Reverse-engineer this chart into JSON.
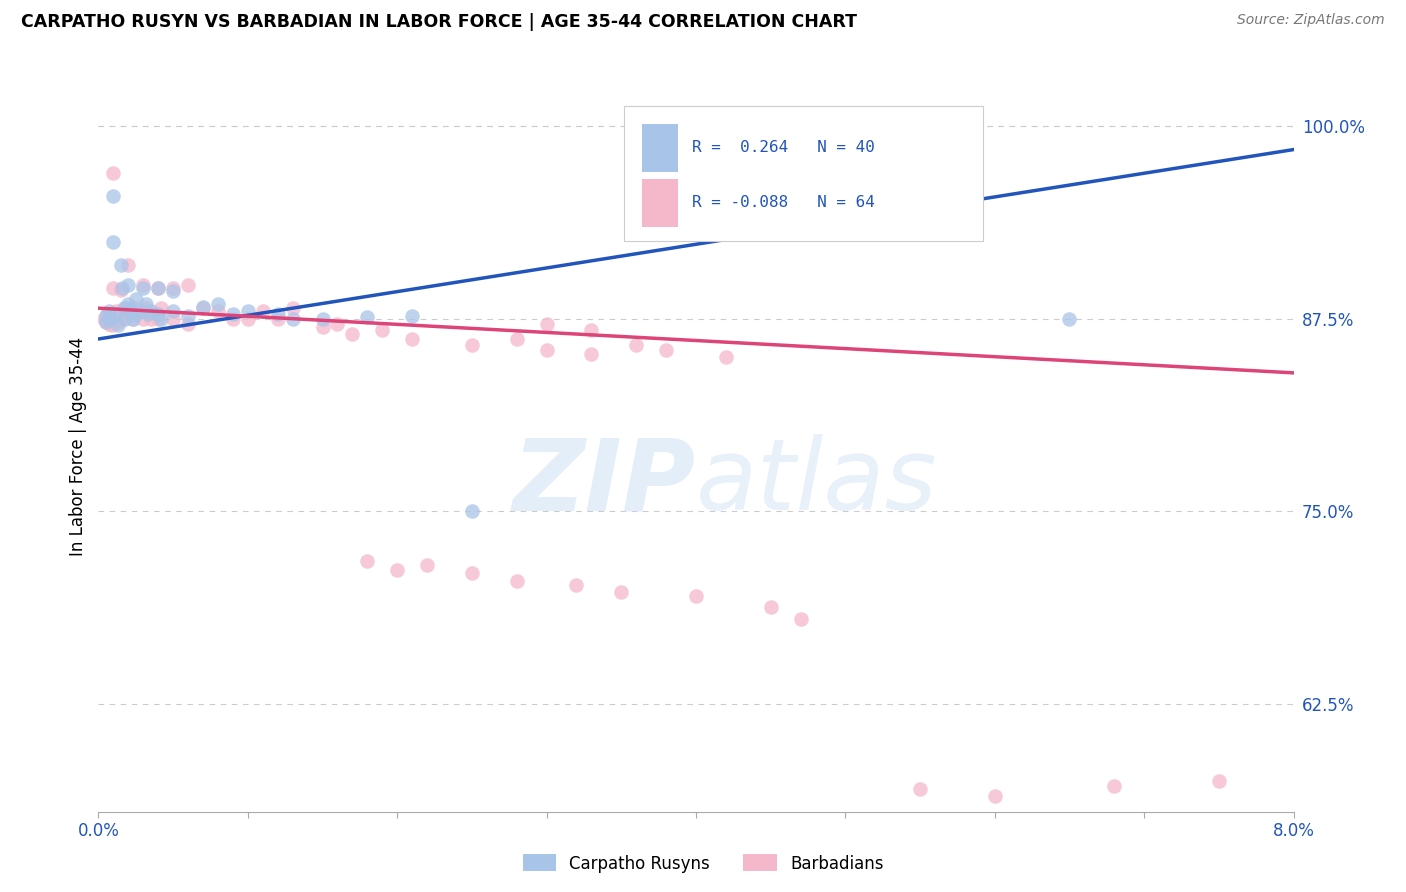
{
  "title": "CARPATHO RUSYN VS BARBADIAN IN LABOR FORCE | AGE 35-44 CORRELATION CHART",
  "source": "Source: ZipAtlas.com",
  "ylabel": "In Labor Force | Age 35-44",
  "yticks": [
    "62.5%",
    "75.0%",
    "87.5%",
    "100.0%"
  ],
  "ytick_vals": [
    0.625,
    0.75,
    0.875,
    1.0
  ],
  "xlim": [
    0.0,
    0.08
  ],
  "ylim": [
    0.555,
    1.03
  ],
  "carpatho_color": "#a8c4e8",
  "barbadian_color": "#f5b8cb",
  "line_blue": "#2255bb",
  "line_pink": "#dd4477",
  "blue_line_x": [
    0.0,
    0.08
  ],
  "blue_line_y": [
    0.862,
    0.985
  ],
  "pink_line_x": [
    0.0,
    0.08
  ],
  "pink_line_y": [
    0.882,
    0.84
  ],
  "carpatho_x": [
    0.0005,
    0.0005,
    0.0007,
    0.0008,
    0.001,
    0.001,
    0.0012,
    0.0013,
    0.0015,
    0.0016,
    0.0017,
    0.0018,
    0.002,
    0.002,
    0.0022,
    0.0023,
    0.0025,
    0.0025,
    0.003,
    0.003,
    0.0032,
    0.0033,
    0.0035,
    0.004,
    0.004,
    0.0042,
    0.005,
    0.005,
    0.006,
    0.007,
    0.008,
    0.009,
    0.01,
    0.012,
    0.013,
    0.015,
    0.018,
    0.021,
    0.025,
    0.065
  ],
  "carpatho_y": [
    0.877,
    0.873,
    0.88,
    0.875,
    0.955,
    0.925,
    0.878,
    0.871,
    0.91,
    0.895,
    0.882,
    0.875,
    0.897,
    0.885,
    0.882,
    0.875,
    0.888,
    0.878,
    0.895,
    0.88,
    0.885,
    0.878,
    0.88,
    0.895,
    0.878,
    0.875,
    0.893,
    0.88,
    0.877,
    0.883,
    0.885,
    0.878,
    0.88,
    0.878,
    0.875,
    0.875,
    0.876,
    0.877,
    0.75,
    0.875
  ],
  "barbadian_x": [
    0.0004,
    0.0005,
    0.0006,
    0.0007,
    0.0008,
    0.0009,
    0.001,
    0.001,
    0.0012,
    0.0013,
    0.0015,
    0.0016,
    0.0018,
    0.002,
    0.002,
    0.0022,
    0.0023,
    0.0025,
    0.003,
    0.003,
    0.0032,
    0.0035,
    0.004,
    0.004,
    0.0042,
    0.005,
    0.005,
    0.006,
    0.006,
    0.007,
    0.008,
    0.009,
    0.01,
    0.011,
    0.012,
    0.013,
    0.015,
    0.016,
    0.017,
    0.019,
    0.021,
    0.025,
    0.028,
    0.03,
    0.033,
    0.036,
    0.038,
    0.042,
    0.03,
    0.033,
    0.018,
    0.02,
    0.022,
    0.025,
    0.028,
    0.032,
    0.035,
    0.04,
    0.045,
    0.047,
    0.055,
    0.06,
    0.068,
    0.075
  ],
  "barbadian_y": [
    0.875,
    0.873,
    0.878,
    0.872,
    0.876,
    0.871,
    0.97,
    0.895,
    0.88,
    0.873,
    0.894,
    0.875,
    0.882,
    0.91,
    0.878,
    0.882,
    0.875,
    0.882,
    0.897,
    0.875,
    0.882,
    0.875,
    0.895,
    0.875,
    0.882,
    0.895,
    0.875,
    0.897,
    0.872,
    0.882,
    0.88,
    0.875,
    0.875,
    0.88,
    0.875,
    0.882,
    0.87,
    0.872,
    0.865,
    0.868,
    0.862,
    0.858,
    0.862,
    0.855,
    0.852,
    0.858,
    0.855,
    0.85,
    0.872,
    0.868,
    0.718,
    0.712,
    0.715,
    0.71,
    0.705,
    0.702,
    0.698,
    0.695,
    0.688,
    0.68,
    0.57,
    0.565,
    0.572,
    0.575
  ]
}
